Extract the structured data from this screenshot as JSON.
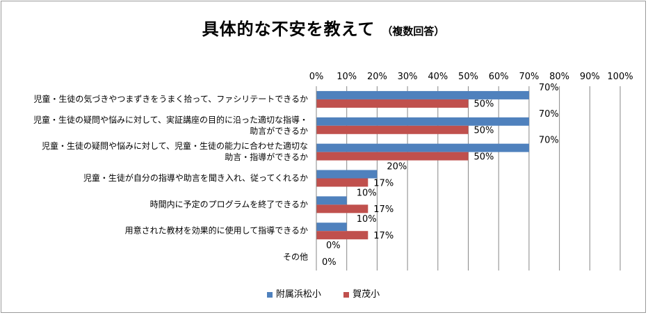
{
  "chart_data": {
    "type": "bar",
    "orientation": "horizontal",
    "title": "具体的な不安を教えて",
    "subtitle": "（複数回答）",
    "categories": [
      [
        "児童・生徒の気づきやつまずきをうまく拾って、ファシリテートできるか"
      ],
      [
        "児童・生徒の疑問や悩みに対して、実証講座の目的に沿った適切な指導・",
        "助言ができるか"
      ],
      [
        "児童・生徒の疑問や悩みに対して、児童・生徒の能力に合わせた適切な",
        "助言・指導ができるか"
      ],
      [
        "児童・生徒が自分の指導や助言を聞き入れ、従ってくれるか"
      ],
      [
        "時間内に予定のプログラムを終了できるか"
      ],
      [
        "用意された教材を効果的に使用して指導できるか"
      ],
      [
        "その他"
      ]
    ],
    "series": [
      {
        "name": "附属浜松小",
        "color": "#4F81BD",
        "values": [
          70,
          70,
          70,
          20,
          10,
          10,
          0
        ],
        "labels": [
          "70%",
          "70%",
          "70%",
          "20%",
          "10%",
          "10%",
          "0%"
        ]
      },
      {
        "name": "賀茂小",
        "color": "#C0504D",
        "values": [
          50,
          50,
          50,
          17,
          17,
          17,
          0
        ],
        "labels": [
          "50%",
          "50%",
          "50%",
          "17%",
          "17%",
          "17%",
          "0%"
        ]
      }
    ],
    "xlim": [
      0,
      100
    ],
    "xticks": [
      "0%",
      "10%",
      "20%",
      "30%",
      "40%",
      "50%",
      "60%",
      "70%",
      "80%",
      "90%",
      "100%"
    ],
    "grid": true,
    "axis_position": "top",
    "legend": "bottom"
  }
}
